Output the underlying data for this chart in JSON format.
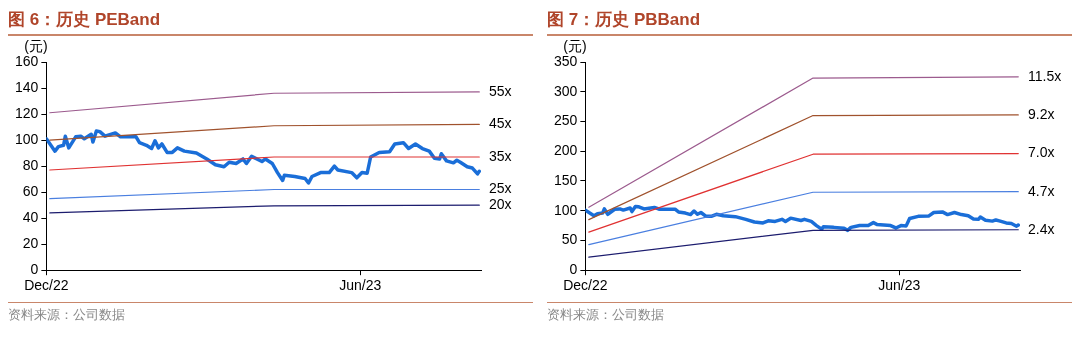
{
  "chart_data": [
    {
      "type": "line",
      "title": "图 6：历史 PEBand",
      "ylabel": "(元)",
      "annotations": [
        "资料来源：公司数据"
      ],
      "xlim": [
        "2022-12-01",
        "2023-08-10"
      ],
      "xticks": [
        {
          "value": "2022-12-01",
          "label": "Dec/22"
        },
        {
          "value": "2023-06-01",
          "label": "Jun/23"
        }
      ],
      "ylim": [
        0,
        160
      ],
      "yticks": [
        0,
        20,
        40,
        60,
        80,
        100,
        120,
        140,
        160
      ],
      "legend": false,
      "marker": "none",
      "series": [
        {
          "name": "55x",
          "color": "#9c5b8e",
          "x": [
            "2022-12-03",
            "2023-04-12",
            "2023-08-09"
          ],
          "values": [
            121,
            136,
            137
          ]
        },
        {
          "name": "45x",
          "color": "#a0522d",
          "x": [
            "2022-12-03",
            "2023-04-12",
            "2023-08-09"
          ],
          "values": [
            100,
            111,
            112
          ]
        },
        {
          "name": "35x",
          "color": "#e03232",
          "x": [
            "2022-12-03",
            "2023-04-12",
            "2023-08-09"
          ],
          "values": [
            77,
            87,
            87
          ]
        },
        {
          "name": "25x",
          "color": "#4a7fe0",
          "x": [
            "2022-12-03",
            "2023-04-12",
            "2023-08-09"
          ],
          "values": [
            55,
            62,
            62
          ]
        },
        {
          "name": "20x",
          "color": "#1c1c6e",
          "x": [
            "2022-12-03",
            "2023-04-12",
            "2023-08-09"
          ],
          "values": [
            44,
            49.5,
            50
          ]
        },
        {
          "color": "#1a6ed8",
          "x": [
            "2022-12-01",
            "2022-12-06",
            "2022-12-08",
            "2022-12-11",
            "2022-12-12",
            "2022-12-14",
            "2022-12-18",
            "2022-12-21",
            "2022-12-23",
            "2022-12-27",
            "2022-12-28",
            "2022-12-30",
            "2023-01-01",
            "2023-01-04",
            "2023-01-10",
            "2023-01-13",
            "2023-01-22",
            "2023-01-24",
            "2023-01-28",
            "2023-01-31",
            "2023-02-02",
            "2023-02-04",
            "2023-02-06",
            "2023-02-09",
            "2023-02-12",
            "2023-02-15",
            "2023-02-19",
            "2023-02-26",
            "2023-03-04",
            "2023-03-09",
            "2023-03-14",
            "2023-03-17",
            "2023-03-21",
            "2023-03-25",
            "2023-03-27",
            "2023-03-30",
            "2023-04-05",
            "2023-04-07",
            "2023-04-11",
            "2023-04-14",
            "2023-04-17",
            "2023-04-18",
            "2023-04-24",
            "2023-04-30",
            "2023-05-02",
            "2023-05-04",
            "2023-05-09",
            "2023-05-14",
            "2023-05-17",
            "2023-05-19",
            "2023-05-27",
            "2023-05-30",
            "2023-06-02",
            "2023-06-05",
            "2023-06-07",
            "2023-06-12",
            "2023-06-18",
            "2023-06-21",
            "2023-06-26",
            "2023-06-29",
            "2023-07-03",
            "2023-07-07",
            "2023-07-11",
            "2023-07-14",
            "2023-07-17",
            "2023-07-18",
            "2023-07-21",
            "2023-07-25",
            "2023-07-27",
            "2023-07-29",
            "2023-08-02",
            "2023-08-05",
            "2023-08-08",
            "2023-08-09"
          ],
          "values": [
            101,
            91.5,
            95,
            96,
            103,
            94,
            102.5,
            103,
            101,
            104.5,
            98.5,
            107,
            106.5,
            103,
            105.5,
            102.5,
            102.5,
            98,
            96,
            93.5,
            99.5,
            94,
            97,
            90.5,
            90.5,
            94,
            91.5,
            90,
            85.5,
            81,
            79.5,
            83,
            82,
            85.5,
            82,
            87.5,
            83.5,
            85.5,
            82,
            75,
            69,
            73,
            72,
            70.5,
            67,
            72,
            75,
            75,
            80,
            77,
            75,
            71,
            75,
            74.5,
            87,
            90.5,
            91,
            97,
            98,
            93.5,
            97,
            93.5,
            91.5,
            86,
            85.5,
            89.5,
            84,
            82.5,
            84.5,
            83,
            79.5,
            78.5,
            74,
            76
          ]
        }
      ]
    },
    {
      "type": "line",
      "title": "图 7：历史 PBBand",
      "ylabel": "(元)",
      "annotations": [
        "资料来源：公司数据"
      ],
      "xlim": [
        "2022-12-01",
        "2023-08-10"
      ],
      "xticks": [
        {
          "value": "2022-12-01",
          "label": "Dec/22"
        },
        {
          "value": "2023-06-01",
          "label": "Jun/23"
        }
      ],
      "ylim": [
        0,
        350
      ],
      "yticks": [
        0,
        50,
        100,
        150,
        200,
        250,
        300,
        350
      ],
      "legend": false,
      "marker": "none",
      "series": [
        {
          "name": "11.5x",
          "color": "#9c5b8e",
          "x": [
            "2022-12-03",
            "2023-04-12",
            "2023-08-09"
          ],
          "values": [
            106,
            323,
            325
          ]
        },
        {
          "name": "9.2x",
          "color": "#a0522d",
          "x": [
            "2022-12-03",
            "2023-04-12",
            "2023-08-09"
          ],
          "values": [
            85,
            260,
            261
          ]
        },
        {
          "name": "7.0x",
          "color": "#e03232",
          "x": [
            "2022-12-03",
            "2023-04-12",
            "2023-08-09"
          ],
          "values": [
            64,
            195,
            196
          ]
        },
        {
          "name": "4.7x",
          "color": "#4a7fe0",
          "x": [
            "2022-12-03",
            "2023-04-12",
            "2023-08-09"
          ],
          "values": [
            43,
            131,
            132
          ]
        },
        {
          "name": "2.4x",
          "color": "#1c1c6e",
          "x": [
            "2022-12-03",
            "2023-04-12",
            "2023-08-09"
          ],
          "values": [
            22,
            67,
            68
          ]
        },
        {
          "color": "#1a6ed8",
          "x": [
            "2022-12-01",
            "2022-12-06",
            "2022-12-08",
            "2022-12-11",
            "2022-12-12",
            "2022-12-14",
            "2022-12-18",
            "2022-12-21",
            "2022-12-23",
            "2022-12-27",
            "2022-12-28",
            "2022-12-30",
            "2023-01-01",
            "2023-01-04",
            "2023-01-10",
            "2023-01-13",
            "2023-01-22",
            "2023-01-24",
            "2023-01-28",
            "2023-01-31",
            "2023-02-02",
            "2023-02-04",
            "2023-02-06",
            "2023-02-09",
            "2023-02-12",
            "2023-02-15",
            "2023-02-19",
            "2023-02-26",
            "2023-03-04",
            "2023-03-09",
            "2023-03-14",
            "2023-03-17",
            "2023-03-21",
            "2023-03-25",
            "2023-03-27",
            "2023-03-30",
            "2023-04-05",
            "2023-04-07",
            "2023-04-11",
            "2023-04-14",
            "2023-04-17",
            "2023-04-18",
            "2023-04-24",
            "2023-04-30",
            "2023-05-02",
            "2023-05-04",
            "2023-05-09",
            "2023-05-14",
            "2023-05-17",
            "2023-05-19",
            "2023-05-27",
            "2023-05-30",
            "2023-06-02",
            "2023-06-05",
            "2023-06-07",
            "2023-06-12",
            "2023-06-18",
            "2023-06-21",
            "2023-06-26",
            "2023-06-29",
            "2023-07-03",
            "2023-07-07",
            "2023-07-11",
            "2023-07-14",
            "2023-07-17",
            "2023-07-18",
            "2023-07-21",
            "2023-07-25",
            "2023-07-27",
            "2023-07-29",
            "2023-08-02",
            "2023-08-05",
            "2023-08-08",
            "2023-08-09"
          ],
          "values": [
            101,
            91.5,
            95,
            96,
            103,
            94,
            102.5,
            103,
            101,
            104.5,
            98.5,
            107,
            106.5,
            103,
            105.5,
            102.5,
            102.5,
            98,
            96,
            93.5,
            99.5,
            94,
            97,
            90.5,
            90.5,
            94,
            91.5,
            90,
            85.5,
            81,
            79.5,
            83,
            82,
            85.5,
            82,
            87.5,
            83.5,
            85.5,
            82,
            75,
            69,
            73,
            72,
            70.5,
            67,
            72,
            75,
            75,
            80,
            77,
            75,
            71,
            75,
            74.5,
            87,
            90.5,
            91,
            97,
            98,
            93.5,
            97,
            93.5,
            91.5,
            86,
            85.5,
            89.5,
            84,
            82.5,
            84.5,
            83,
            79.5,
            78.5,
            74,
            76
          ]
        }
      ]
    }
  ]
}
